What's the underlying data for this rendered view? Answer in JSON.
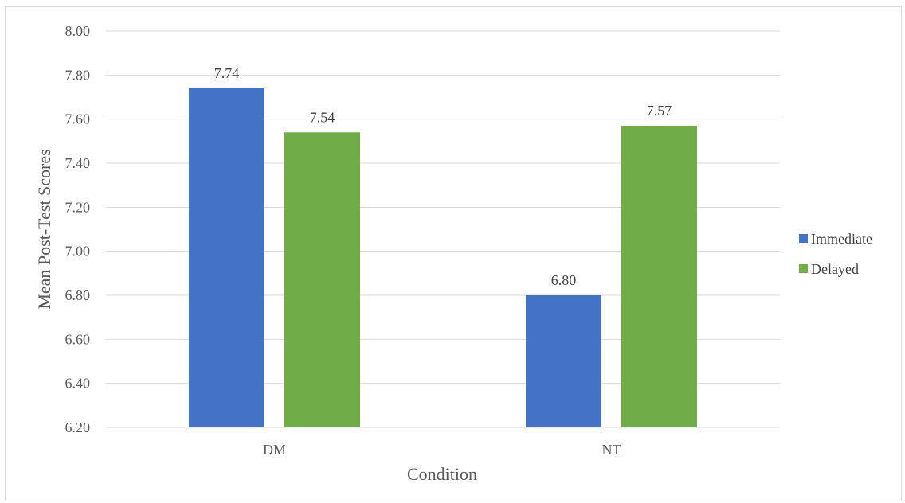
{
  "chart_data": {
    "type": "bar",
    "categories": [
      "DM",
      "NT"
    ],
    "series": [
      {
        "name": "Immediate",
        "color": "#4472C4",
        "values": [
          7.74,
          6.8
        ],
        "labels": [
          "7.74",
          "6.80"
        ]
      },
      {
        "name": "Delayed",
        "color": "#70AD47",
        "values": [
          7.54,
          7.57
        ],
        "labels": [
          "7.54",
          "7.57"
        ]
      }
    ],
    "title": "",
    "xlabel": "Condition",
    "ylabel": "Mean Post-Test Scores",
    "ylim": [
      6.2,
      8.0
    ],
    "yticks": [
      "6.20",
      "6.40",
      "6.60",
      "6.80",
      "7.00",
      "7.20",
      "7.40",
      "7.60",
      "7.80",
      "8.00"
    ],
    "grid": true,
    "legend_position": "right"
  }
}
